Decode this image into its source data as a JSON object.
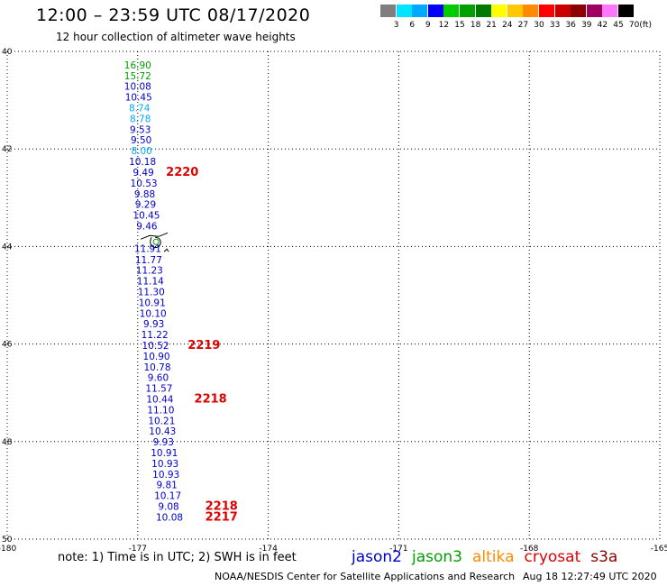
{
  "header": {
    "title": "12:00 – 23:59 UTC 08/17/2020",
    "subtitle": "12 hour collection of altimeter wave heights"
  },
  "colorbar": {
    "colors": [
      "#7f7f7f",
      "#00e5ff",
      "#00a8ff",
      "#0000ff",
      "#00cc00",
      "#00a000",
      "#007a00",
      "#ffff00",
      "#ffc800",
      "#ff8c00",
      "#ff0000",
      "#c80000",
      "#8b0000",
      "#a00060",
      "#ff77ff",
      "#000000"
    ],
    "labels": [
      "3",
      "6",
      "9",
      "12",
      "15",
      "18",
      "21",
      "24",
      "27",
      "30",
      "33",
      "36",
      "39",
      "42",
      "45",
      "70"
    ],
    "unit": "(ft)"
  },
  "chart_data": {
    "type": "scatter",
    "xlim": [
      -180,
      -165
    ],
    "ylim": [
      50,
      40
    ],
    "xticks": [
      "-180",
      "-177",
      "-174",
      "-171",
      "-168",
      "-165"
    ],
    "yticks": [
      "40",
      "42",
      "44",
      "46",
      "48",
      "50"
    ],
    "grid": true,
    "points": [
      {
        "lon": -177.0,
        "lat": 40.35,
        "value": "16.90",
        "color": "#00a000"
      },
      {
        "lon": -177.0,
        "lat": 40.57,
        "value": "15.72",
        "color": "#00a000"
      },
      {
        "lon": -177.0,
        "lat": 40.79,
        "value": "10.08",
        "color": "#0000cc"
      },
      {
        "lon": -176.98,
        "lat": 41.01,
        "value": "10.45",
        "color": "#0000cc"
      },
      {
        "lon": -176.96,
        "lat": 41.23,
        "value": "8.74",
        "color": "#00a8ff"
      },
      {
        "lon": -176.94,
        "lat": 41.45,
        "value": "8.78",
        "color": "#00a8ff"
      },
      {
        "lon": -176.94,
        "lat": 41.67,
        "value": "9.53",
        "color": "#0000cc"
      },
      {
        "lon": -176.92,
        "lat": 41.89,
        "value": "9.50",
        "color": "#0000cc"
      },
      {
        "lon": -176.91,
        "lat": 42.11,
        "value": "8.00",
        "color": "#00a8ff"
      },
      {
        "lon": -176.89,
        "lat": 42.33,
        "value": "10.18",
        "color": "#0000cc"
      },
      {
        "lon": -176.87,
        "lat": 42.55,
        "value": "9.49",
        "color": "#0000cc"
      },
      {
        "lon": -176.86,
        "lat": 42.77,
        "value": "10.53",
        "color": "#0000cc"
      },
      {
        "lon": -176.84,
        "lat": 42.99,
        "value": "9.88",
        "color": "#0000cc"
      },
      {
        "lon": -176.82,
        "lat": 43.21,
        "value": "9.29",
        "color": "#0000cc"
      },
      {
        "lon": -176.8,
        "lat": 43.43,
        "value": "10.45",
        "color": "#0000cc"
      },
      {
        "lon": -176.79,
        "lat": 43.65,
        "value": "9.46",
        "color": "#0000cc"
      },
      {
        "lon": -176.77,
        "lat": 44.11,
        "value": "11.91",
        "color": "#0000cc"
      },
      {
        "lon": -176.75,
        "lat": 44.34,
        "value": "11.77",
        "color": "#0000cc"
      },
      {
        "lon": -176.73,
        "lat": 44.56,
        "value": "11.23",
        "color": "#0000cc"
      },
      {
        "lon": -176.71,
        "lat": 44.78,
        "value": "11.14",
        "color": "#0000cc"
      },
      {
        "lon": -176.69,
        "lat": 45.0,
        "value": "11.30",
        "color": "#0000cc"
      },
      {
        "lon": -176.67,
        "lat": 45.22,
        "value": "10.91",
        "color": "#0000cc"
      },
      {
        "lon": -176.65,
        "lat": 45.44,
        "value": "10.10",
        "color": "#0000cc"
      },
      {
        "lon": -176.63,
        "lat": 45.66,
        "value": "9.93",
        "color": "#0000cc"
      },
      {
        "lon": -176.61,
        "lat": 45.88,
        "value": "11.22",
        "color": "#0000cc"
      },
      {
        "lon": -176.59,
        "lat": 46.1,
        "value": "10.52",
        "color": "#0000cc"
      },
      {
        "lon": -176.57,
        "lat": 46.32,
        "value": "10.90",
        "color": "#0000cc"
      },
      {
        "lon": -176.55,
        "lat": 46.54,
        "value": "10.78",
        "color": "#0000cc"
      },
      {
        "lon": -176.53,
        "lat": 46.76,
        "value": "9.60",
        "color": "#0000cc"
      },
      {
        "lon": -176.51,
        "lat": 46.98,
        "value": "11.57",
        "color": "#0000cc"
      },
      {
        "lon": -176.49,
        "lat": 47.2,
        "value": "10.44",
        "color": "#0000cc"
      },
      {
        "lon": -176.47,
        "lat": 47.42,
        "value": "11.10",
        "color": "#0000cc"
      },
      {
        "lon": -176.45,
        "lat": 47.64,
        "value": "10.21",
        "color": "#0000cc"
      },
      {
        "lon": -176.43,
        "lat": 47.86,
        "value": "10.43",
        "color": "#0000cc"
      },
      {
        "lon": -176.41,
        "lat": 48.08,
        "value": "9.93",
        "color": "#0000cc"
      },
      {
        "lon": -176.39,
        "lat": 48.3,
        "value": "10.91",
        "color": "#0000cc"
      },
      {
        "lon": -176.37,
        "lat": 48.52,
        "value": "10.93",
        "color": "#0000cc"
      },
      {
        "lon": -176.35,
        "lat": 48.74,
        "value": "10.93",
        "color": "#0000cc"
      },
      {
        "lon": -176.33,
        "lat": 48.96,
        "value": "9.81",
        "color": "#0000cc"
      },
      {
        "lon": -176.31,
        "lat": 49.18,
        "value": "10.17",
        "color": "#0000cc"
      },
      {
        "lon": -176.29,
        "lat": 49.4,
        "value": "9.08",
        "color": "#0000cc"
      },
      {
        "lon": -176.27,
        "lat": 49.62,
        "value": "10.08",
        "color": "#0000cc"
      }
    ],
    "time_labels": [
      {
        "lon": -176.35,
        "lat": 42.55,
        "text": "2220"
      },
      {
        "lon": -175.85,
        "lat": 46.1,
        "text": "2219"
      },
      {
        "lon": -175.7,
        "lat": 47.2,
        "text": "2218"
      },
      {
        "lon": -175.45,
        "lat": 49.4,
        "text": "2218"
      },
      {
        "lon": -175.45,
        "lat": 49.62,
        "text": "2217"
      }
    ],
    "island": {
      "lon": -176.6,
      "lat": 43.85
    }
  },
  "footer": {
    "note": "note:  1) Time is in UTC;  2) SWH is in feet",
    "credit": "NOAA/NESDIS Center for Satellite Applications and Research",
    "stamp": "Aug 18 12:27:49 UTC 2020",
    "legend": [
      {
        "label": "jason2",
        "color": "#0000cc"
      },
      {
        "label": "jason3",
        "color": "#00a000"
      },
      {
        "label": "altika",
        "color": "#ff8c00"
      },
      {
        "label": "cryosat",
        "color": "#dd0000"
      },
      {
        "label": "s3a",
        "color": "#8b0000"
      }
    ]
  }
}
